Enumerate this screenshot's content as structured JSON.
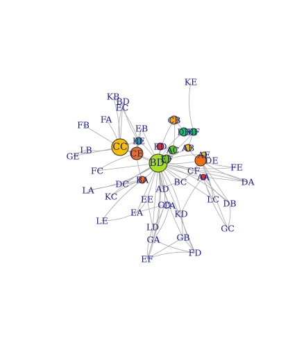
{
  "diagram": {
    "type": "network",
    "nodes": [
      {
        "id": "KE"
      },
      {
        "id": "KB"
      },
      {
        "id": "BD"
      },
      {
        "id": "EC"
      },
      {
        "id": "FA"
      },
      {
        "id": "FB"
      },
      {
        "id": "CB"
      },
      {
        "id": "EB"
      },
      {
        "id": "DB"
      },
      {
        "id": "BF"
      },
      {
        "id": "CC",
        "color": "#f5c000"
      },
      {
        "id": "BE"
      },
      {
        "id": "LB"
      },
      {
        "id": "GE"
      },
      {
        "id": "AB"
      },
      {
        "id": "CE"
      },
      {
        "id": "AC"
      },
      {
        "id": "ED"
      },
      {
        "id": "AE"
      },
      {
        "id": "DE"
      },
      {
        "id": "FC"
      },
      {
        "id": "BD2",
        "label": "BD"
      },
      {
        "id": "EF"
      },
      {
        "id": "FE"
      },
      {
        "id": "DC"
      },
      {
        "id": "BA"
      },
      {
        "id": "AD"
      },
      {
        "id": "BC"
      },
      {
        "id": "CF"
      },
      {
        "id": "AA"
      },
      {
        "id": "DA"
      },
      {
        "id": "LA"
      },
      {
        "id": "KC"
      },
      {
        "id": "EE"
      },
      {
        "id": "CD"
      },
      {
        "id": "CA"
      },
      {
        "id": "LC"
      },
      {
        "id": "DB2",
        "label": "DB"
      },
      {
        "id": "LE"
      },
      {
        "id": "EA"
      },
      {
        "id": "KD"
      },
      {
        "id": "GC"
      },
      {
        "id": "LD"
      },
      {
        "id": "GA"
      },
      {
        "id": "GB"
      },
      {
        "id": "FD"
      },
      {
        "id": "EF2",
        "label": "EF"
      }
    ]
  }
}
